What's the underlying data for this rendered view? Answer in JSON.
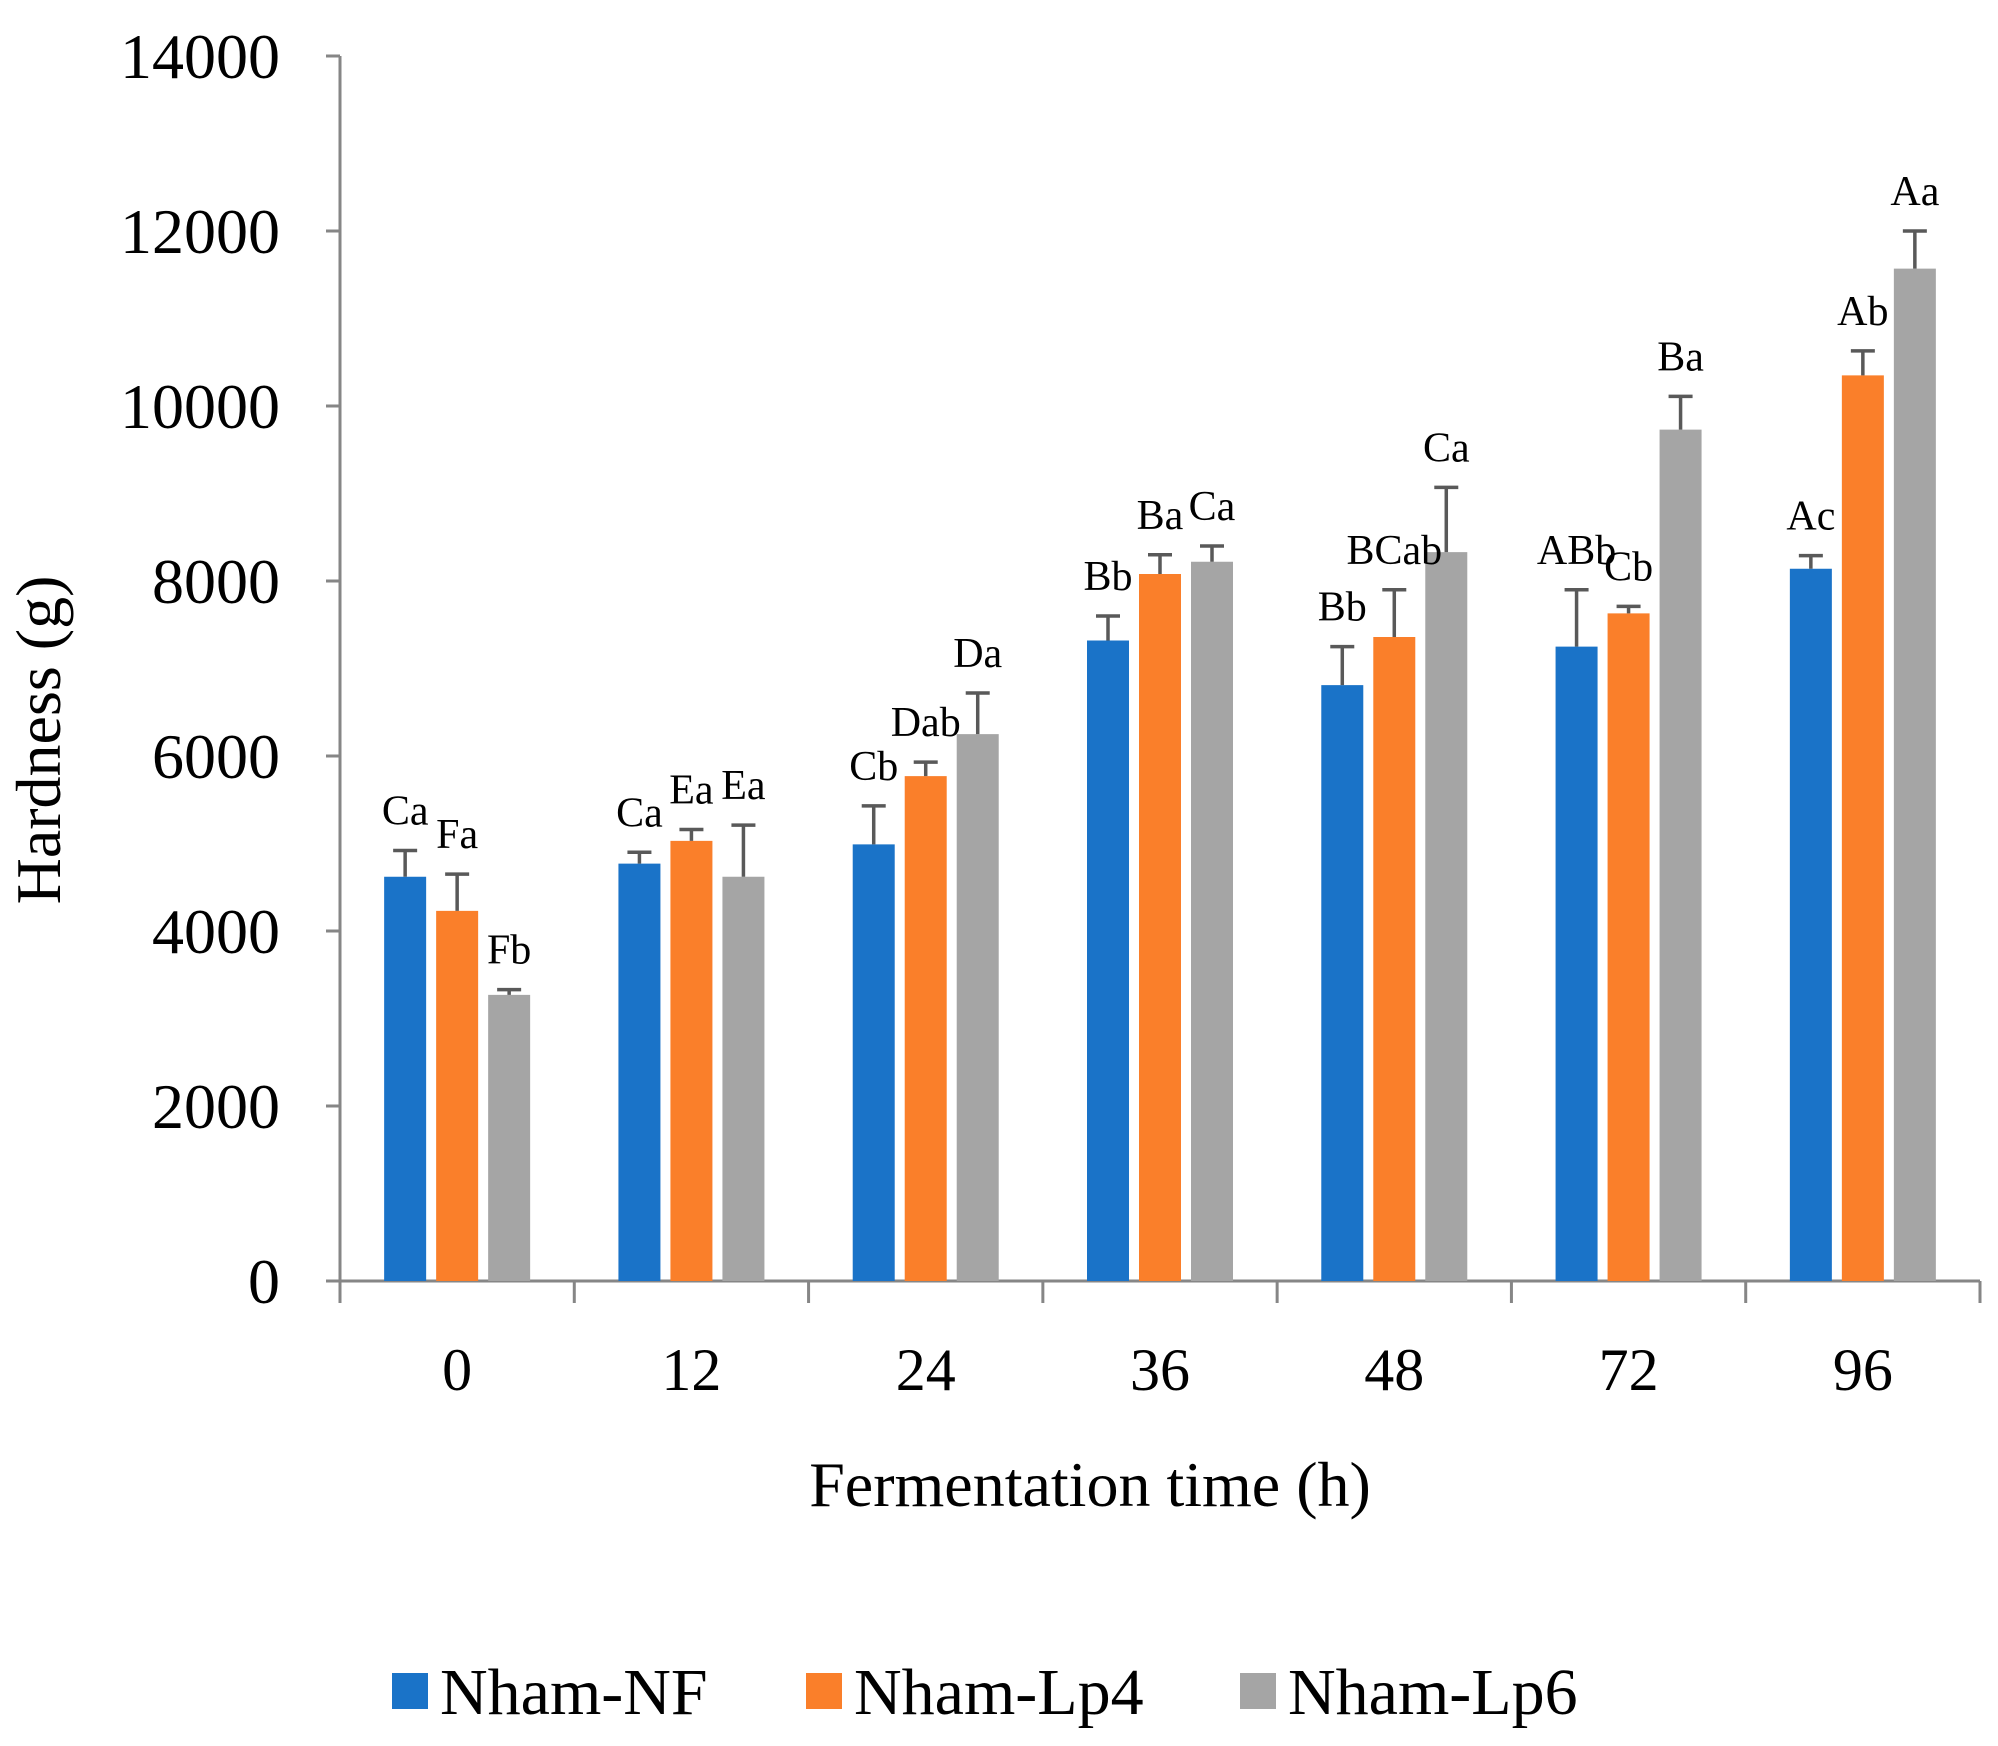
{
  "chart_data": {
    "type": "bar",
    "title": "",
    "xlabel": "Fermentation time (h)",
    "ylabel": "Hardness (g)",
    "ylim": [
      0,
      14000
    ],
    "ytick_step": 2000,
    "yticks": [
      "0",
      "2000",
      "4000",
      "6000",
      "8000",
      "10000",
      "12000",
      "14000"
    ],
    "categories": [
      "0",
      "12",
      "24",
      "36",
      "48",
      "72",
      "96"
    ],
    "series": [
      {
        "name": "Nham-NF",
        "color": "#1A73C8",
        "values": [
          4620,
          4770,
          4990,
          7320,
          6810,
          7250,
          8140
        ],
        "errors": [
          300,
          130,
          440,
          280,
          440,
          650,
          150
        ],
        "labels": [
          "Ca",
          "Ca",
          "Cb",
          "Bb",
          "Bb",
          "ABb",
          "Ac"
        ]
      },
      {
        "name": "Nham-Lp4",
        "color": "#FA7F2A",
        "values": [
          4230,
          5030,
          5770,
          8080,
          7360,
          7630,
          10350
        ],
        "errors": [
          420,
          130,
          160,
          220,
          540,
          80,
          280
        ],
        "labels": [
          "Fa",
          "Ea",
          "Dab",
          "Ba",
          "BCab",
          "Cb",
          "Ab"
        ]
      },
      {
        "name": "Nham-Lp6",
        "color": "#A5A5A5",
        "values": [
          3270,
          4620,
          6250,
          8220,
          8330,
          9730,
          11570
        ],
        "errors": [
          60,
          590,
          470,
          180,
          740,
          380,
          430
        ],
        "labels": [
          "Fb",
          "Ea",
          "Da",
          "Ca",
          "Ca",
          "Ba",
          "Aa"
        ]
      }
    ],
    "grid": false,
    "legend": "bottom"
  }
}
